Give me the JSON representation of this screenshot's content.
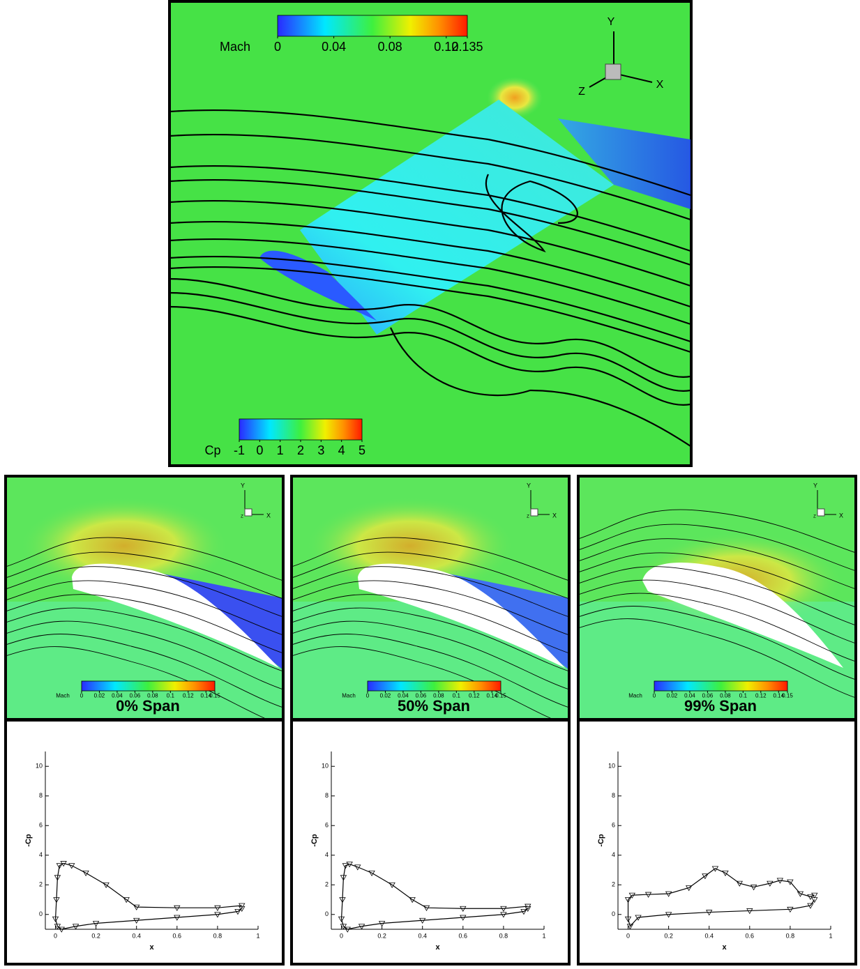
{
  "top_view": {
    "mach_colorbar": {
      "label": "Mach",
      "lim": [
        0,
        0.135
      ],
      "ticks": [
        0,
        0.04,
        0.08,
        0.12,
        0.135
      ]
    },
    "cp_colorbar": {
      "label": "Cp",
      "lim": [
        -1,
        5
      ],
      "ticks": [
        -1,
        0,
        1,
        2,
        3,
        4,
        5
      ]
    },
    "axes": [
      "X",
      "Y",
      "Z"
    ]
  },
  "span_views": [
    {
      "title": "0% Span",
      "colorbar": {
        "label": "Mach",
        "lim": [
          0,
          0.15
        ],
        "ticks": [
          0,
          0.02,
          0.04,
          0.06,
          0.08,
          0.1,
          0.12,
          0.14,
          0.15
        ]
      },
      "axes": [
        "X",
        "Y",
        "Z"
      ]
    },
    {
      "title": "50% Span",
      "colorbar": {
        "label": "Mach",
        "lim": [
          0,
          0.15
        ],
        "ticks": [
          0,
          0.02,
          0.04,
          0.06,
          0.08,
          0.1,
          0.12,
          0.14,
          0.15
        ]
      },
      "axes": [
        "X",
        "Y",
        "Z"
      ]
    },
    {
      "title": "99% Span",
      "colorbar": {
        "label": "Mach",
        "lim": [
          0,
          0.15
        ],
        "ticks": [
          0,
          0.02,
          0.04,
          0.06,
          0.08,
          0.1,
          0.12,
          0.14,
          0.15
        ]
      },
      "axes": [
        "X",
        "Y",
        "Z"
      ]
    }
  ],
  "chart_data": [
    {
      "type": "line",
      "x_label": "x",
      "y_label": "-Cp",
      "xlim": [
        -0.05,
        1
      ],
      "ylim": [
        -1,
        11
      ],
      "xticks": [
        0,
        0.2,
        0.4,
        0.6,
        0.8,
        1
      ],
      "yticks": [
        0,
        2,
        4,
        6,
        8,
        10
      ],
      "x": [
        0.92,
        0.8,
        0.6,
        0.4,
        0.35,
        0.25,
        0.15,
        0.08,
        0.04,
        0.02,
        0.01,
        0.005,
        0,
        0.01,
        0.03,
        0.1,
        0.2,
        0.4,
        0.6,
        0.8,
        0.9,
        0.92
      ],
      "series": [
        {
          "color": "#000000",
          "values": [
            0.6,
            0.45,
            0.45,
            0.5,
            1.0,
            2.0,
            2.8,
            3.3,
            3.45,
            3.3,
            2.5,
            1.0,
            -0.3,
            -0.8,
            -1.0,
            -0.8,
            -0.6,
            -0.4,
            -0.2,
            0.0,
            0.2,
            0.4
          ]
        }
      ]
    },
    {
      "type": "line",
      "x_label": "x",
      "y_label": "-Cp",
      "xlim": [
        -0.05,
        1
      ],
      "ylim": [
        -1,
        11
      ],
      "xticks": [
        0,
        0.2,
        0.4,
        0.6,
        0.8,
        1
      ],
      "yticks": [
        0,
        2,
        4,
        6,
        8,
        10
      ],
      "x": [
        0.92,
        0.8,
        0.6,
        0.42,
        0.35,
        0.25,
        0.15,
        0.08,
        0.04,
        0.02,
        0.01,
        0.005,
        0,
        0.01,
        0.03,
        0.1,
        0.2,
        0.4,
        0.6,
        0.8,
        0.9,
        0.92
      ],
      "series": [
        {
          "color": "#000000",
          "values": [
            0.55,
            0.4,
            0.4,
            0.45,
            1.0,
            2.0,
            2.8,
            3.2,
            3.4,
            3.3,
            2.5,
            1.0,
            -0.3,
            -0.8,
            -1.0,
            -0.8,
            -0.6,
            -0.4,
            -0.2,
            0.0,
            0.2,
            0.4
          ]
        }
      ]
    },
    {
      "type": "line",
      "x_label": "x",
      "y_label": "-Cp",
      "xlim": [
        -0.05,
        1
      ],
      "ylim": [
        -1,
        11
      ],
      "xticks": [
        0,
        0.2,
        0.4,
        0.6,
        0.8,
        1
      ],
      "yticks": [
        0,
        2,
        4,
        6,
        8,
        10
      ],
      "x": [
        0.92,
        0.9,
        0.85,
        0.8,
        0.75,
        0.7,
        0.62,
        0.55,
        0.48,
        0.43,
        0.38,
        0.3,
        0.2,
        0.1,
        0.02,
        0,
        0,
        0.01,
        0.05,
        0.2,
        0.4,
        0.6,
        0.8,
        0.9,
        0.92
      ],
      "series": [
        {
          "color": "#000000",
          "values": [
            1.3,
            1.2,
            1.4,
            2.2,
            2.3,
            2.1,
            1.85,
            2.1,
            2.8,
            3.1,
            2.6,
            1.8,
            1.4,
            1.35,
            1.3,
            1.0,
            -0.3,
            -0.8,
            -0.2,
            0.0,
            0.15,
            0.25,
            0.35,
            0.6,
            1.0
          ]
        }
      ]
    }
  ]
}
